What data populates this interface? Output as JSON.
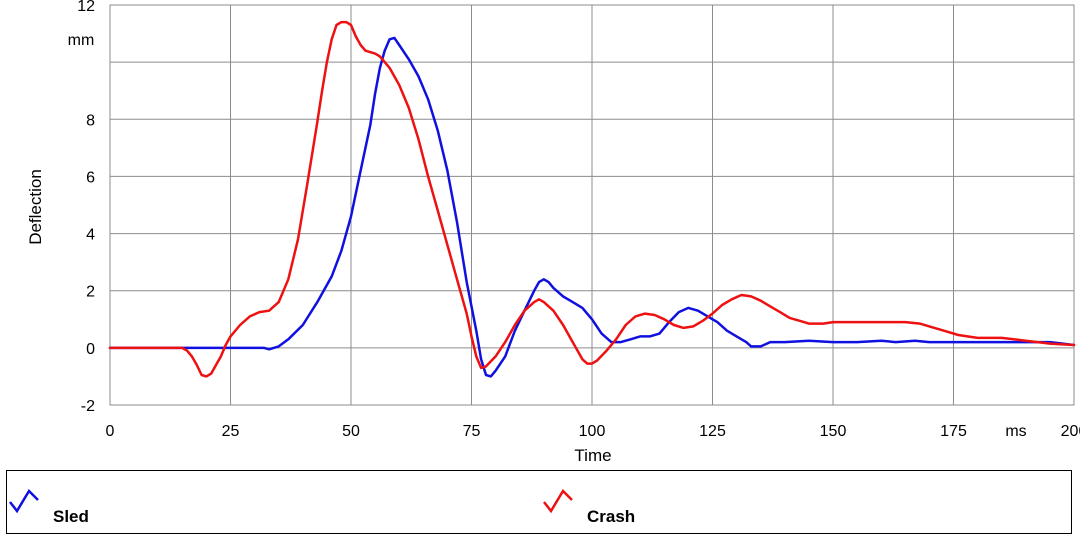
{
  "chart_data": {
    "type": "line",
    "xlabel": "Time",
    "ylabel": "Deflection",
    "x_unit": "ms",
    "y_unit": "mm",
    "xlim": [
      0,
      200
    ],
    "ylim": [
      -2,
      12
    ],
    "x_ticks": [
      "0",
      "25",
      "50",
      "75",
      "100",
      "125",
      "150",
      "175",
      "200"
    ],
    "y_ticks": [
      "-2",
      "0",
      "2",
      "4",
      "6",
      "8",
      "12"
    ],
    "grid": true,
    "legend_position": "bottom",
    "series": [
      {
        "name": "Sled",
        "color": "#1010e0",
        "points": [
          [
            0,
            0
          ],
          [
            15,
            0
          ],
          [
            28,
            0
          ],
          [
            32,
            0
          ],
          [
            33,
            -0.05
          ],
          [
            35,
            0.05
          ],
          [
            37,
            0.3
          ],
          [
            40,
            0.8
          ],
          [
            43,
            1.6
          ],
          [
            46,
            2.5
          ],
          [
            48,
            3.4
          ],
          [
            50,
            4.6
          ],
          [
            52,
            6.2
          ],
          [
            54,
            7.8
          ],
          [
            55,
            8.9
          ],
          [
            56,
            9.8
          ],
          [
            57,
            10.4
          ],
          [
            58,
            10.8
          ],
          [
            59,
            10.85
          ],
          [
            60,
            10.6
          ],
          [
            62,
            10.1
          ],
          [
            64,
            9.5
          ],
          [
            66,
            8.7
          ],
          [
            68,
            7.6
          ],
          [
            70,
            6.2
          ],
          [
            72,
            4.4
          ],
          [
            74,
            2.3
          ],
          [
            76,
            0.6
          ],
          [
            77,
            -0.4
          ],
          [
            78,
            -0.95
          ],
          [
            79,
            -1.0
          ],
          [
            80,
            -0.8
          ],
          [
            82,
            -0.3
          ],
          [
            84,
            0.6
          ],
          [
            86,
            1.3
          ],
          [
            88,
            2.0
          ],
          [
            89,
            2.3
          ],
          [
            90,
            2.4
          ],
          [
            91,
            2.3
          ],
          [
            92,
            2.1
          ],
          [
            94,
            1.8
          ],
          [
            96,
            1.6
          ],
          [
            98,
            1.4
          ],
          [
            100,
            1.0
          ],
          [
            102,
            0.5
          ],
          [
            104,
            0.2
          ],
          [
            106,
            0.2
          ],
          [
            108,
            0.3
          ],
          [
            110,
            0.4
          ],
          [
            112,
            0.4
          ],
          [
            114,
            0.5
          ],
          [
            116,
            0.9
          ],
          [
            118,
            1.25
          ],
          [
            120,
            1.4
          ],
          [
            122,
            1.3
          ],
          [
            124,
            1.1
          ],
          [
            126,
            0.9
          ],
          [
            128,
            0.6
          ],
          [
            130,
            0.4
          ],
          [
            132,
            0.2
          ],
          [
            133,
            0.05
          ],
          [
            135,
            0.05
          ],
          [
            137,
            0.2
          ],
          [
            140,
            0.2
          ],
          [
            145,
            0.25
          ],
          [
            150,
            0.2
          ],
          [
            155,
            0.2
          ],
          [
            160,
            0.25
          ],
          [
            163,
            0.2
          ],
          [
            167,
            0.25
          ],
          [
            170,
            0.2
          ],
          [
            180,
            0.2
          ],
          [
            190,
            0.2
          ],
          [
            195,
            0.2
          ],
          [
            200,
            0.1
          ]
        ]
      },
      {
        "name": "Crash",
        "color": "#ee1111",
        "points": [
          [
            0,
            0
          ],
          [
            15,
            0
          ],
          [
            16,
            -0.1
          ],
          [
            17,
            -0.3
          ],
          [
            18,
            -0.6
          ],
          [
            19,
            -0.95
          ],
          [
            20,
            -1.0
          ],
          [
            21,
            -0.9
          ],
          [
            22,
            -0.6
          ],
          [
            23,
            -0.3
          ],
          [
            24,
            0.1
          ],
          [
            25,
            0.4
          ],
          [
            27,
            0.8
          ],
          [
            29,
            1.1
          ],
          [
            31,
            1.25
          ],
          [
            33,
            1.3
          ],
          [
            35,
            1.6
          ],
          [
            37,
            2.4
          ],
          [
            39,
            3.8
          ],
          [
            41,
            5.8
          ],
          [
            43,
            7.9
          ],
          [
            44,
            9.0
          ],
          [
            45,
            10.0
          ],
          [
            46,
            10.8
          ],
          [
            47,
            11.3
          ],
          [
            48,
            11.4
          ],
          [
            49,
            11.4
          ],
          [
            50,
            11.3
          ],
          [
            51,
            10.9
          ],
          [
            52,
            10.6
          ],
          [
            53,
            10.4
          ],
          [
            55,
            10.3
          ],
          [
            56,
            10.2
          ],
          [
            58,
            9.8
          ],
          [
            60,
            9.2
          ],
          [
            62,
            8.4
          ],
          [
            64,
            7.3
          ],
          [
            66,
            6.0
          ],
          [
            68,
            4.8
          ],
          [
            70,
            3.6
          ],
          [
            72,
            2.4
          ],
          [
            74,
            1.2
          ],
          [
            75,
            0.4
          ],
          [
            76,
            -0.3
          ],
          [
            77,
            -0.7
          ],
          [
            78,
            -0.65
          ],
          [
            80,
            -0.3
          ],
          [
            82,
            0.2
          ],
          [
            84,
            0.8
          ],
          [
            86,
            1.3
          ],
          [
            88,
            1.6
          ],
          [
            89,
            1.7
          ],
          [
            90,
            1.6
          ],
          [
            92,
            1.3
          ],
          [
            94,
            0.8
          ],
          [
            96,
            0.2
          ],
          [
            98,
            -0.4
          ],
          [
            99,
            -0.55
          ],
          [
            100,
            -0.55
          ],
          [
            101,
            -0.45
          ],
          [
            103,
            -0.1
          ],
          [
            105,
            0.3
          ],
          [
            107,
            0.8
          ],
          [
            109,
            1.1
          ],
          [
            111,
            1.2
          ],
          [
            113,
            1.15
          ],
          [
            115,
            1.0
          ],
          [
            117,
            0.8
          ],
          [
            119,
            0.7
          ],
          [
            121,
            0.75
          ],
          [
            123,
            0.95
          ],
          [
            125,
            1.2
          ],
          [
            127,
            1.5
          ],
          [
            129,
            1.7
          ],
          [
            131,
            1.85
          ],
          [
            133,
            1.8
          ],
          [
            135,
            1.65
          ],
          [
            137,
            1.45
          ],
          [
            139,
            1.25
          ],
          [
            141,
            1.05
          ],
          [
            143,
            0.95
          ],
          [
            145,
            0.85
          ],
          [
            148,
            0.85
          ],
          [
            150,
            0.9
          ],
          [
            155,
            0.9
          ],
          [
            160,
            0.9
          ],
          [
            165,
            0.9
          ],
          [
            168,
            0.85
          ],
          [
            170,
            0.75
          ],
          [
            173,
            0.6
          ],
          [
            176,
            0.45
          ],
          [
            180,
            0.35
          ],
          [
            185,
            0.35
          ],
          [
            190,
            0.25
          ],
          [
            195,
            0.15
          ],
          [
            200,
            0.1
          ]
        ]
      }
    ]
  }
}
